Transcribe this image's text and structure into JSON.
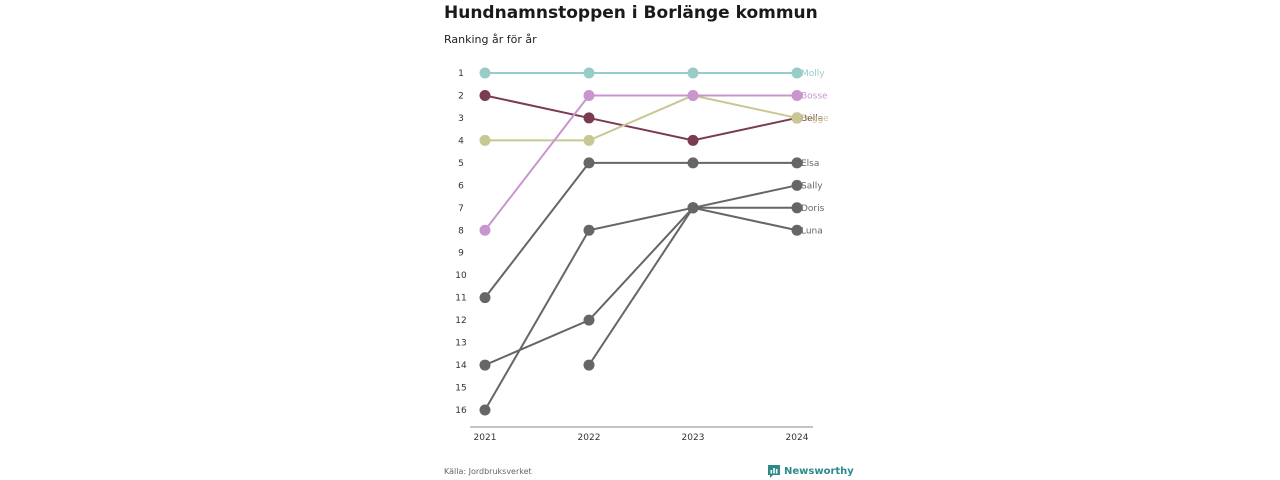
{
  "header": {
    "title": "Hundnamnstoppen i Borlänge kommun",
    "subtitle": "Ranking år för år"
  },
  "footer": {
    "source": "Källa: Jordbruksverket",
    "brand": "Newsworthy",
    "brand_icon": "newsworthy-logo-icon"
  },
  "chart_data": {
    "type": "line",
    "subtype": "bump",
    "title": "Hundnamnstoppen i Borlänge kommun",
    "subtitle": "Ranking år för år",
    "x": [
      "2021",
      "2022",
      "2023",
      "2024"
    ],
    "y_ticks": [
      1,
      2,
      3,
      4,
      5,
      6,
      7,
      8,
      9,
      10,
      11,
      12,
      13,
      14,
      15,
      16
    ],
    "ylim": [
      1,
      16
    ],
    "y_inverted": true,
    "grid": false,
    "legend": "end-labels",
    "series": [
      {
        "name": "Luna",
        "color": "#666666",
        "values": [
          null,
          14,
          7,
          8
        ]
      },
      {
        "name": "Doris",
        "color": "#666666",
        "values": [
          14,
          12,
          7,
          7
        ]
      },
      {
        "name": "Sally",
        "color": "#666666",
        "values": [
          16,
          8,
          7,
          6
        ]
      },
      {
        "name": "Elsa",
        "color": "#666666",
        "values": [
          11,
          5,
          5,
          5
        ]
      },
      {
        "name": "Bella",
        "color": "#7b3b52",
        "values": [
          2,
          3,
          4,
          3
        ]
      },
      {
        "name": "Frigge",
        "color": "#c8c894",
        "values": [
          4,
          4,
          2,
          3
        ]
      },
      {
        "name": "Bosse",
        "color": "#c995cf",
        "values": [
          8,
          2,
          2,
          2
        ]
      },
      {
        "name": "Molly",
        "color": "#98ccc8",
        "values": [
          1,
          1,
          1,
          1
        ]
      }
    ]
  }
}
